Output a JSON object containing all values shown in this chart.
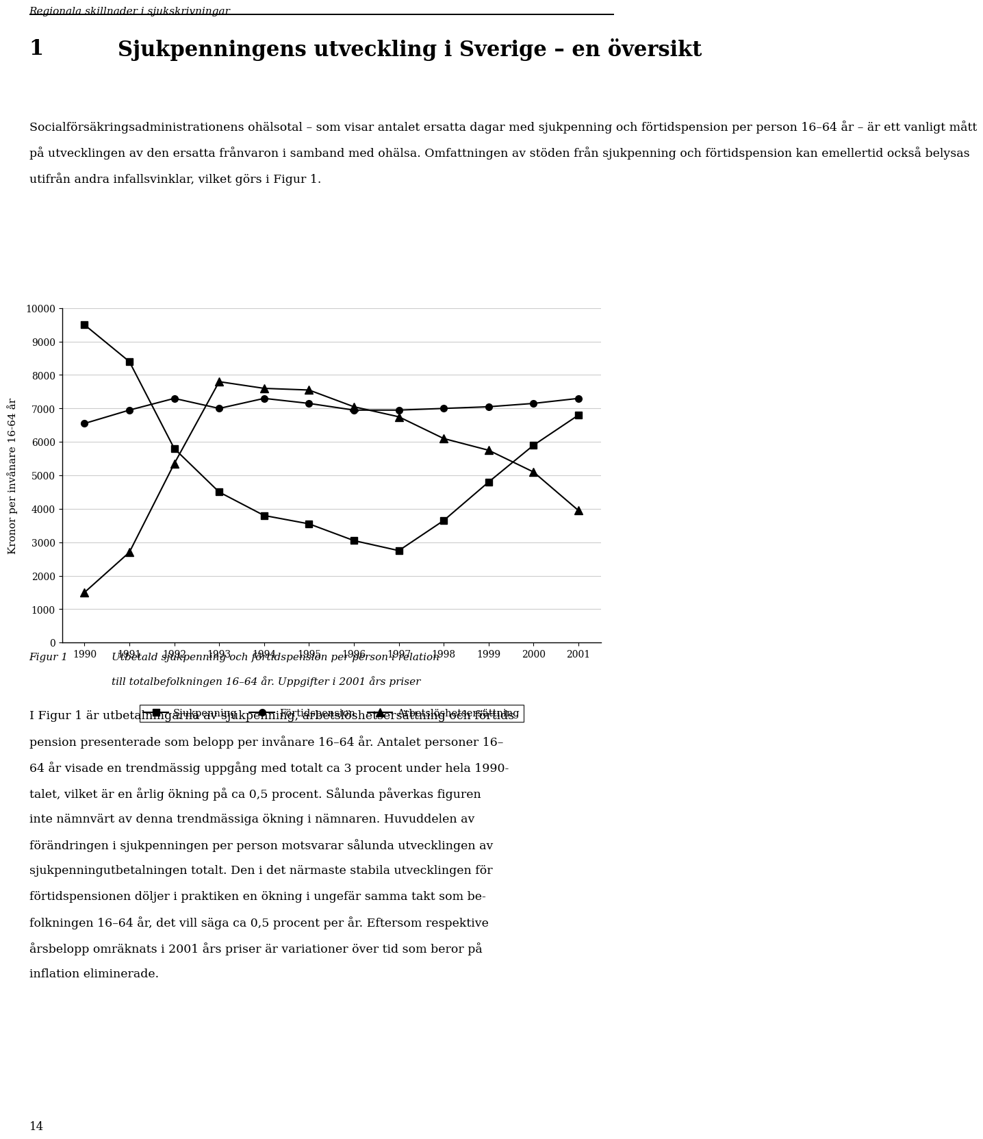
{
  "years": [
    1990,
    1991,
    1992,
    1993,
    1994,
    1995,
    1996,
    1997,
    1998,
    1999,
    2000,
    2001
  ],
  "sjukpenning": [
    9500,
    8400,
    5800,
    4500,
    3800,
    3550,
    3050,
    2750,
    3650,
    4800,
    5900,
    6800
  ],
  "fortidspension": [
    6550,
    6950,
    7300,
    7000,
    7300,
    7150,
    6950,
    6950,
    7000,
    7050,
    7150,
    7300
  ],
  "arbetsloshetsersattning": [
    1500,
    2700,
    5350,
    7800,
    7600,
    7550,
    7050,
    6750,
    6100,
    5750,
    5100,
    3950
  ],
  "ylabel": "Kronor per invånare 16-64 år",
  "ylim": [
    0,
    10000
  ],
  "yticks": [
    0,
    1000,
    2000,
    3000,
    4000,
    5000,
    6000,
    7000,
    8000,
    9000,
    10000
  ],
  "legend_labels": [
    "Sjukpenning",
    "Förtidspension",
    "Arbetslöshetsersättning"
  ],
  "header_italic": "Regionala skillnader i sjukskrivningar",
  "chapter_num": "1",
  "chapter_title": "Sjukpenningens utveckling i Sverige – en översikt",
  "body_text_lines": [
    "Socialförsäkringsadministrationens ohälsotal – som visar antalet ersatta dagar med sjukpenning och förtidspension per person 16–64 år – är ett vanligt mått",
    "på utvecklingen av den ersatta frånvaron i samband med ohälsa. Omfattningen av stöden från sjukpenning och förtidspension kan emellertid också belysas",
    "utifrån andra infallsvinklar, vilket görs i Figur 1."
  ],
  "fig_label": "Figur 1",
  "fig_caption_line1": "Utbetald sjukpenning och förtidspension per person i relation",
  "fig_caption_line2": "till totalbefolkningen 16–64 år. Uppgifter i 2001 års priser",
  "body_text2_lines": [
    "I Figur 1 är utbetalningarna av sjukpenning, arbetslöshetsersättning och förtids-",
    "pension presenterade som belopp per invånare 16–64 år. Antalet personer 16–",
    "64 år visade en trendmässig uppgång med totalt ca 3 procent under hela 1990-",
    "talet, vilket är en årlig ökning på ca 0,5 procent. Sålunda påverkas figuren",
    "inte nämnvärt av denna trendmässiga ökning i nämnaren. Huvuddelen av",
    "förändringen i sjukpenningen per person motsvarar sålunda utvecklingen av",
    "sjukpenningutbetalningen totalt. Den i det närmaste stabila utvecklingen för",
    "förtidspensionen döljer i praktiken en ökning i ungefär samma takt som be-",
    "folkningen 16–64 år, det vill säga ca 0,5 procent per år. Eftersom respektive",
    "årsbelopp omräknats i 2001 års priser är variationer över tid som beror på",
    "inflation eliminerade."
  ],
  "footer_num": "14",
  "bg_color": "#ffffff"
}
